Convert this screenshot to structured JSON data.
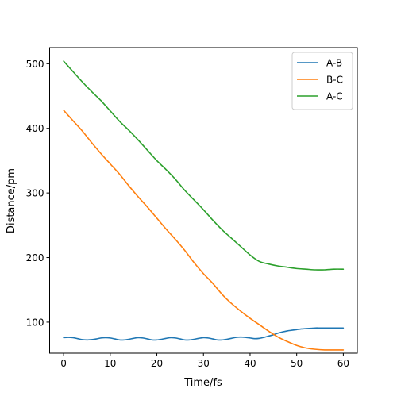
{
  "chart_data": {
    "type": "line",
    "title": "",
    "xlabel": "Time/fs",
    "ylabel": "Distance/pm",
    "xlim": [
      -3,
      63
    ],
    "ylim": [
      52,
      525
    ],
    "xticks": [
      0,
      10,
      20,
      30,
      40,
      50,
      60
    ],
    "yticks": [
      100,
      200,
      300,
      400,
      500
    ],
    "grid": false,
    "legend_position": "upper right",
    "series": [
      {
        "name": "A-B",
        "color": "#1f77b4",
        "x": [
          0,
          1,
          2,
          3,
          4,
          5,
          6,
          7,
          8,
          9,
          10,
          11,
          12,
          13,
          14,
          15,
          16,
          17,
          18,
          19,
          20,
          21,
          22,
          23,
          24,
          25,
          26,
          27,
          28,
          29,
          30,
          31,
          32,
          33,
          34,
          35,
          36,
          37,
          38,
          39,
          40,
          41,
          42,
          43,
          44,
          45,
          46,
          47,
          48,
          49,
          50,
          51,
          52,
          53,
          54,
          55,
          56,
          57,
          58,
          59,
          60
        ],
        "y": [
          76,
          76.5,
          76,
          74.5,
          73,
          72.5,
          73,
          74,
          75.5,
          76,
          75.5,
          74,
          72.5,
          72.5,
          73.5,
          75,
          76,
          75.5,
          74,
          72.5,
          72.5,
          73.5,
          75,
          76,
          75.5,
          74,
          72.5,
          72.5,
          73.5,
          75,
          76,
          75.5,
          74,
          72.5,
          72.5,
          73.5,
          75,
          76.5,
          77,
          76.5,
          75.5,
          74.5,
          75,
          76.5,
          78.5,
          80.5,
          83,
          85,
          86.5,
          87.5,
          88.5,
          89.5,
          90,
          90.5,
          91,
          91,
          91,
          91,
          91,
          91,
          91
        ]
      },
      {
        "name": "B-C",
        "color": "#ff7f0e",
        "x": [
          0,
          2,
          4,
          6,
          8,
          10,
          12,
          14,
          16,
          18,
          20,
          22,
          24,
          26,
          28,
          30,
          32,
          34,
          36,
          38,
          40,
          42,
          44,
          46,
          48,
          50,
          52,
          54,
          56,
          58,
          60
        ],
        "y": [
          428,
          412,
          396,
          378,
          361,
          345,
          329,
          311,
          294,
          278,
          261,
          244,
          228,
          211,
          192,
          175,
          160,
          143,
          129,
          117,
          106,
          96,
          86,
          77,
          70,
          64,
          60,
          58,
          57,
          57,
          57
        ]
      },
      {
        "name": "A-C",
        "color": "#2ca02c",
        "x": [
          0,
          2,
          4,
          6,
          8,
          10,
          12,
          14,
          16,
          18,
          20,
          22,
          24,
          26,
          28,
          30,
          32,
          34,
          36,
          38,
          40,
          42,
          44,
          46,
          48,
          50,
          52,
          54,
          56,
          58,
          60
        ],
        "y": [
          504,
          488,
          472,
          457,
          443,
          427,
          411,
          397,
          382,
          366,
          350,
          336,
          321,
          304,
          289,
          274,
          258,
          243,
          230,
          217,
          204,
          194,
          190,
          187,
          185,
          183,
          182,
          181,
          181,
          182,
          182
        ]
      }
    ]
  }
}
